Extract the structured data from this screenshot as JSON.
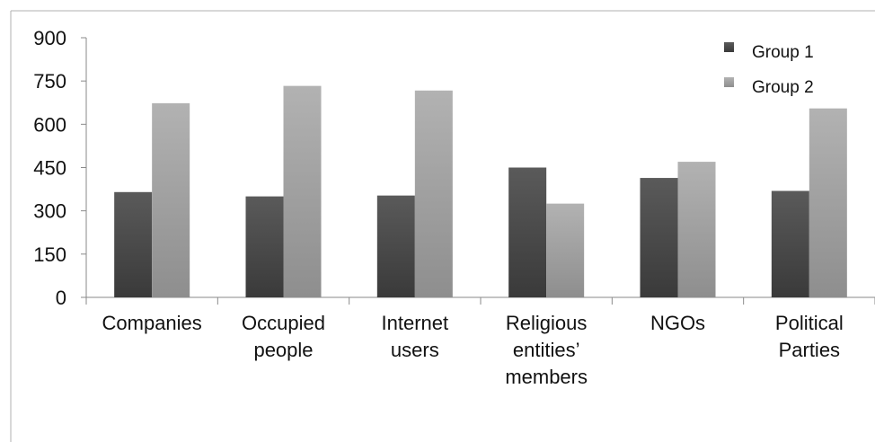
{
  "chart_data": {
    "type": "bar",
    "categories": [
      [
        "Companies"
      ],
      [
        "Occupied",
        "people"
      ],
      [
        "Internet",
        "users"
      ],
      [
        "Religious",
        "entities’",
        "members"
      ],
      [
        "NGOs"
      ],
      [
        "Political",
        "Parties"
      ]
    ],
    "series": [
      {
        "name": "Group 1",
        "values": [
          365,
          350,
          353,
          450,
          414,
          369
        ],
        "color": "#4a4a4a"
      },
      {
        "name": "Group 2",
        "values": [
          673,
          733,
          717,
          325,
          470,
          655
        ],
        "color": "#a6a6a6"
      }
    ],
    "ylim": [
      0,
      900
    ],
    "yticks": [
      "900",
      "750",
      "600",
      "450",
      "300",
      "150",
      "0"
    ],
    "ytick_values": [
      900,
      750,
      600,
      450,
      300,
      150,
      0
    ],
    "grid": false,
    "legend": "top-right",
    "title": "",
    "xlabel": "",
    "ylabel": ""
  }
}
